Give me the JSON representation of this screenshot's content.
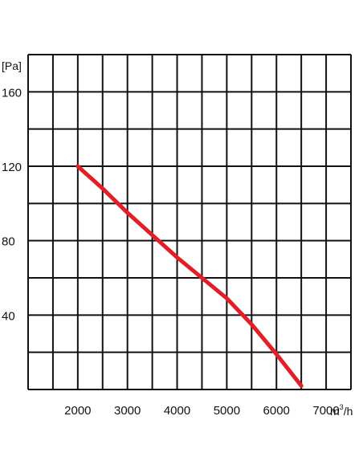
{
  "chart_data": {
    "type": "line",
    "title": "",
    "xlabel": "",
    "ylabel": "",
    "x_unit": {
      "base": "m",
      "sup": "3",
      "tail": "/h"
    },
    "y_unit": "[Pa]",
    "xlim": [
      1000,
      7500
    ],
    "ylim": [
      0,
      180
    ],
    "grid": true,
    "x_ticks": [
      {
        "value": 2000,
        "label": "2000"
      },
      {
        "value": 3000,
        "label": "3000"
      },
      {
        "value": 4000,
        "label": "4000"
      },
      {
        "value": 5000,
        "label": "5000"
      },
      {
        "value": 6000,
        "label": "6000"
      },
      {
        "value": 7000,
        "label": "7000"
      }
    ],
    "y_ticks": [
      {
        "value": 40,
        "label": "40"
      },
      {
        "value": 80,
        "label": "80"
      },
      {
        "value": 120,
        "label": "120"
      },
      {
        "value": 160,
        "label": "160"
      }
    ],
    "x_grid_values": [
      1000,
      1500,
      2000,
      2500,
      3000,
      3500,
      4000,
      4500,
      5000,
      5500,
      6000,
      6500,
      7000,
      7500
    ],
    "y_grid_values": [
      0,
      20,
      40,
      60,
      80,
      100,
      120,
      140,
      160,
      180
    ],
    "series": [
      {
        "name": "",
        "color": "#e41e26",
        "x": [
          2000,
          2500,
          3000,
          3500,
          4000,
          4500,
          5000,
          5500,
          6000,
          6500
        ],
        "y": [
          120,
          108,
          95,
          83,
          71,
          60,
          49,
          35,
          19,
          2
        ]
      }
    ]
  }
}
